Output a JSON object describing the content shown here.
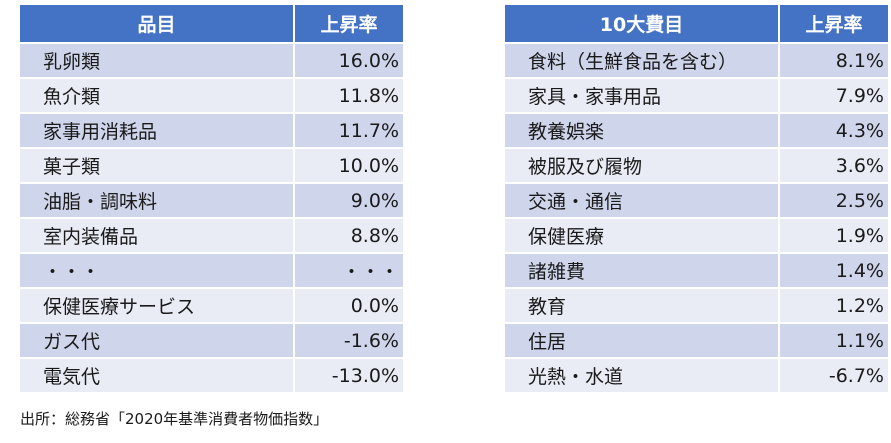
{
  "chart_data": [
    {
      "type": "table",
      "columns": [
        "品目",
        "上昇率"
      ],
      "rows": [
        {
          "label": "乳卵類",
          "value": "16.0%"
        },
        {
          "label": "魚介類",
          "value": "11.8%"
        },
        {
          "label": "家事用消耗品",
          "value": "11.7%"
        },
        {
          "label": "菓子類",
          "value": "10.0%"
        },
        {
          "label": "油脂・調味料",
          "value": "9.0%"
        },
        {
          "label": "室内装備品",
          "value": "8.8%"
        },
        {
          "label": "・・・",
          "value": "・・・"
        },
        {
          "label": "保健医療サービス",
          "value": "0.0%"
        },
        {
          "label": "ガス代",
          "value": "-1.6%"
        },
        {
          "label": "電気代",
          "value": "-13.0%"
        }
      ]
    },
    {
      "type": "table",
      "columns": [
        "10大費目",
        "上昇率"
      ],
      "rows": [
        {
          "label": "食料（生鮮食品を含む）",
          "value": "8.1%"
        },
        {
          "label": "家具・家事用品",
          "value": "7.9%"
        },
        {
          "label": "教養娯楽",
          "value": "4.3%"
        },
        {
          "label": "被服及び履物",
          "value": "3.6%"
        },
        {
          "label": "交通・通信",
          "value": "2.5%"
        },
        {
          "label": "保健医療",
          "value": "1.9%"
        },
        {
          "label": "諸雑費",
          "value": "1.4%"
        },
        {
          "label": "教育",
          "value": "1.2%"
        },
        {
          "label": "住居",
          "value": "1.1%"
        },
        {
          "label": "光熱・水道",
          "value": "-6.7%"
        }
      ]
    }
  ],
  "source": "出所：総務省「2020年基準消費者物価指数」",
  "colors": {
    "header_bg": "#4472c4",
    "header_text": "#ffffff",
    "row_odd": "#cfd5ea",
    "row_even": "#e9ebf5"
  }
}
